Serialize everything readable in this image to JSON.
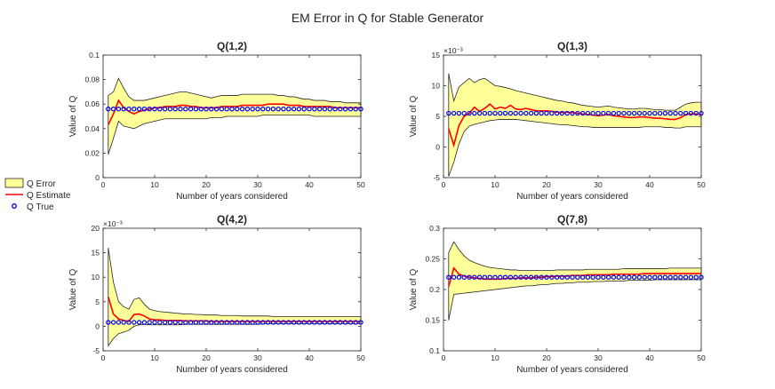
{
  "figure_title": "EM Error in Q for Stable Generator",
  "legend": {
    "error_label": "Q Error",
    "estimate_label": "Q Estimate",
    "true_label": "Q True"
  },
  "colors": {
    "band_fill": "#ffff99",
    "band_edge": "#262626",
    "estimate": "#ff0000",
    "true_marker": "#0000ff"
  },
  "chart_data": [
    {
      "id": "q12",
      "type": "line",
      "title": "Q(1,2)",
      "xlabel": "Number of years considered",
      "ylabel": "Value of Q",
      "exponent_label": "",
      "xlim": [
        0,
        50
      ],
      "ylim": [
        0,
        0.1
      ],
      "xticks": [
        0,
        10,
        20,
        30,
        40,
        50
      ],
      "xtick_labels": [
        "0",
        "10",
        "20",
        "30",
        "40",
        "50"
      ],
      "yticks": [
        0,
        0.02,
        0.04,
        0.06,
        0.08,
        0.1
      ],
      "ytick_labels": [
        "0",
        "0.02",
        "0.04",
        "0.06",
        "0.08",
        "0.1"
      ],
      "x": [
        1,
        2,
        3,
        4,
        5,
        6,
        7,
        8,
        9,
        10,
        11,
        12,
        13,
        14,
        15,
        16,
        17,
        18,
        19,
        20,
        21,
        22,
        23,
        24,
        25,
        26,
        27,
        28,
        29,
        30,
        31,
        32,
        33,
        34,
        35,
        36,
        37,
        38,
        39,
        40,
        41,
        42,
        43,
        44,
        45,
        46,
        47,
        48,
        49,
        50
      ],
      "true_value": 0.056,
      "estimate": [
        0.043,
        0.052,
        0.063,
        0.057,
        0.054,
        0.052,
        0.054,
        0.055,
        0.056,
        0.057,
        0.057,
        0.058,
        0.058,
        0.058,
        0.059,
        0.059,
        0.058,
        0.058,
        0.057,
        0.057,
        0.057,
        0.057,
        0.058,
        0.058,
        0.058,
        0.058,
        0.059,
        0.059,
        0.059,
        0.059,
        0.059,
        0.06,
        0.06,
        0.06,
        0.06,
        0.059,
        0.059,
        0.059,
        0.058,
        0.058,
        0.058,
        0.058,
        0.058,
        0.058,
        0.057,
        0.057,
        0.057,
        0.057,
        0.057,
        0.057
      ],
      "upper": [
        0.067,
        0.07,
        0.081,
        0.073,
        0.066,
        0.063,
        0.063,
        0.063,
        0.064,
        0.065,
        0.066,
        0.067,
        0.068,
        0.069,
        0.07,
        0.07,
        0.069,
        0.068,
        0.067,
        0.066,
        0.065,
        0.066,
        0.067,
        0.067,
        0.067,
        0.067,
        0.068,
        0.068,
        0.068,
        0.068,
        0.068,
        0.068,
        0.068,
        0.067,
        0.067,
        0.066,
        0.066,
        0.065,
        0.064,
        0.064,
        0.063,
        0.063,
        0.063,
        0.062,
        0.062,
        0.062,
        0.061,
        0.061,
        0.061,
        0.061
      ],
      "lower": [
        0.019,
        0.032,
        0.046,
        0.042,
        0.041,
        0.04,
        0.042,
        0.044,
        0.045,
        0.046,
        0.047,
        0.048,
        0.048,
        0.048,
        0.048,
        0.048,
        0.048,
        0.048,
        0.048,
        0.048,
        0.049,
        0.049,
        0.049,
        0.05,
        0.05,
        0.05,
        0.05,
        0.05,
        0.05,
        0.05,
        0.051,
        0.051,
        0.051,
        0.051,
        0.051,
        0.051,
        0.051,
        0.051,
        0.051,
        0.051,
        0.05,
        0.05,
        0.05,
        0.05,
        0.05,
        0.05,
        0.05,
        0.05,
        0.05,
        0.05
      ]
    },
    {
      "id": "q13",
      "type": "line",
      "title": "Q(1,3)",
      "xlabel": "Number of years considered",
      "ylabel": "Value of Q",
      "exponent_label": "×10⁻³",
      "xlim": [
        0,
        50
      ],
      "ylim": [
        -5,
        15
      ],
      "xticks": [
        0,
        10,
        20,
        30,
        40,
        50
      ],
      "xtick_labels": [
        "0",
        "10",
        "20",
        "30",
        "40",
        "50"
      ],
      "yticks": [
        -5,
        0,
        5,
        10,
        15
      ],
      "ytick_labels": [
        "-5",
        "0",
        "5",
        "10",
        "15"
      ],
      "x": [
        1,
        2,
        3,
        4,
        5,
        6,
        7,
        8,
        9,
        10,
        11,
        12,
        13,
        14,
        15,
        16,
        17,
        18,
        19,
        20,
        21,
        22,
        23,
        24,
        25,
        26,
        27,
        28,
        29,
        30,
        31,
        32,
        33,
        34,
        35,
        36,
        37,
        38,
        39,
        40,
        41,
        42,
        43,
        44,
        45,
        46,
        47,
        48,
        49,
        50
      ],
      "true_value": 5.5,
      "estimate": [
        3,
        0.3,
        3.5,
        5,
        5.5,
        6.5,
        5.8,
        6.3,
        7,
        6.2,
        6.5,
        6.3,
        6.8,
        6.2,
        6.1,
        6.3,
        6.1,
        5.9,
        5.9,
        5.9,
        5.8,
        5.7,
        5.6,
        5.7,
        5.6,
        5.5,
        5.4,
        5.3,
        5.2,
        5.1,
        5.2,
        5.3,
        5.1,
        5,
        4.9,
        4.8,
        4.8,
        4.9,
        4.9,
        4.8,
        4.7,
        4.7,
        4.6,
        4.5,
        4.5,
        4.8,
        5.3,
        5.4,
        5.4,
        5.3
      ],
      "upper": [
        12,
        7.5,
        9.8,
        10.5,
        11.2,
        10.5,
        11,
        11.2,
        10.6,
        10,
        9.9,
        9.7,
        9.5,
        9.2,
        9,
        8.8,
        8.6,
        8.4,
        8.2,
        8,
        7.8,
        7.6,
        7.5,
        7.3,
        7.2,
        7,
        6.8,
        6.7,
        6.6,
        6.5,
        6.6,
        6.7,
        6.5,
        6.4,
        6.3,
        6.2,
        6.2,
        6.3,
        6.3,
        6.2,
        6.1,
        6.1,
        6,
        6,
        6,
        6.5,
        7,
        7.2,
        7.3,
        7.3
      ],
      "lower": [
        -4.8,
        -2.5,
        0.5,
        2.5,
        3.4,
        3.7,
        3.9,
        4.1,
        4.3,
        4.4,
        4.5,
        4.5,
        4.5,
        4.5,
        4.4,
        4.3,
        4.2,
        4.1,
        4,
        3.9,
        3.8,
        3.7,
        3.6,
        3.6,
        3.5,
        3.4,
        3.3,
        3.3,
        3.2,
        3.2,
        3.2,
        3.2,
        3.2,
        3.2,
        3.2,
        3.2,
        3.2,
        3.2,
        3.3,
        3.3,
        3.3,
        3.3,
        3.2,
        3.2,
        3.1,
        3.1,
        3.3,
        3.3,
        3.3,
        3.3
      ]
    },
    {
      "id": "q42",
      "type": "line",
      "title": "Q(4,2)",
      "xlabel": "Number of years considered",
      "ylabel": "Value of Q",
      "exponent_label": "×10⁻³",
      "xlim": [
        0,
        50
      ],
      "ylim": [
        -5,
        20
      ],
      "xticks": [
        0,
        10,
        20,
        30,
        40,
        50
      ],
      "xtick_labels": [
        "0",
        "10",
        "20",
        "30",
        "40",
        "50"
      ],
      "yticks": [
        -5,
        0,
        5,
        10,
        15,
        20
      ],
      "ytick_labels": [
        "-5",
        "0",
        "5",
        "10",
        "15",
        "20"
      ],
      "x": [
        1,
        2,
        3,
        4,
        5,
        6,
        7,
        8,
        9,
        10,
        11,
        12,
        13,
        14,
        15,
        16,
        17,
        18,
        19,
        20,
        21,
        22,
        23,
        24,
        25,
        26,
        27,
        28,
        29,
        30,
        31,
        32,
        33,
        34,
        35,
        36,
        37,
        38,
        39,
        40,
        41,
        42,
        43,
        44,
        45,
        46,
        47,
        48,
        49,
        50
      ],
      "true_value": 0.8,
      "estimate": [
        6,
        2.5,
        1.5,
        1.2,
        1,
        2.4,
        2.5,
        2.1,
        1.5,
        1.3,
        1.3,
        1.2,
        1.2,
        1.2,
        1.2,
        1.1,
        1.1,
        1.1,
        1.1,
        1.1,
        1,
        1,
        1,
        1,
        1,
        1,
        1,
        1,
        1,
        1,
        1,
        1,
        1,
        1,
        1,
        1,
        1,
        1,
        1,
        1,
        1,
        1,
        1,
        1,
        1,
        1,
        1,
        1,
        1,
        1
      ],
      "upper": [
        16,
        9,
        5,
        4,
        3.5,
        5.5,
        5.8,
        4.5,
        3.5,
        3.2,
        3,
        2.9,
        2.8,
        2.7,
        2.6,
        2.5,
        2.5,
        2.4,
        2.4,
        2.3,
        2.3,
        2.3,
        2.2,
        2.2,
        2.2,
        2.2,
        2.1,
        2.1,
        2.1,
        2.1,
        2.1,
        2.1,
        2,
        2,
        2,
        2,
        2,
        2,
        2,
        2,
        2,
        2,
        2,
        2,
        2,
        2,
        2,
        2,
        2,
        2
      ],
      "lower": [
        -4,
        -2.5,
        -1.5,
        -1.2,
        -0.8,
        0,
        0.3,
        0.4,
        0.3,
        0.3,
        0.3,
        0.3,
        0.3,
        0.3,
        0.3,
        0.4,
        0.4,
        0.4,
        0.4,
        0.4,
        0.4,
        0.4,
        0.4,
        0.4,
        0.4,
        0.4,
        0.4,
        0.4,
        0.4,
        0.4,
        0.5,
        0.5,
        0.5,
        0.5,
        0.5,
        0.5,
        0.5,
        0.5,
        0.5,
        0.5,
        0.5,
        0.5,
        0.5,
        0.5,
        0.5,
        0.5,
        0.5,
        0.5,
        0.5,
        0.5
      ]
    },
    {
      "id": "q78",
      "type": "line",
      "title": "Q(7,8)",
      "xlabel": "Number of years considered",
      "ylabel": "Value of Q",
      "exponent_label": "",
      "xlim": [
        0,
        50
      ],
      "ylim": [
        0.1,
        0.3
      ],
      "xticks": [
        0,
        10,
        20,
        30,
        40,
        50
      ],
      "xtick_labels": [
        "0",
        "10",
        "20",
        "30",
        "40",
        "50"
      ],
      "yticks": [
        0.1,
        0.15,
        0.2,
        0.25,
        0.3
      ],
      "ytick_labels": [
        "0.1",
        "0.15",
        "0.2",
        "0.25",
        "0.3"
      ],
      "x": [
        1,
        2,
        3,
        4,
        5,
        6,
        7,
        8,
        9,
        10,
        11,
        12,
        13,
        14,
        15,
        16,
        17,
        18,
        19,
        20,
        21,
        22,
        23,
        24,
        25,
        26,
        27,
        28,
        29,
        30,
        31,
        32,
        33,
        34,
        35,
        36,
        37,
        38,
        39,
        40,
        41,
        42,
        43,
        44,
        45,
        46,
        47,
        48,
        49,
        50
      ],
      "true_value": 0.22,
      "estimate": [
        0.205,
        0.235,
        0.225,
        0.222,
        0.22,
        0.219,
        0.218,
        0.217,
        0.217,
        0.217,
        0.217,
        0.218,
        0.218,
        0.218,
        0.219,
        0.219,
        0.219,
        0.22,
        0.22,
        0.221,
        0.221,
        0.222,
        0.222,
        0.222,
        0.223,
        0.223,
        0.223,
        0.224,
        0.224,
        0.224,
        0.224,
        0.224,
        0.225,
        0.225,
        0.225,
        0.225,
        0.225,
        0.225,
        0.226,
        0.226,
        0.226,
        0.226,
        0.226,
        0.226,
        0.226,
        0.226,
        0.226,
        0.226,
        0.226,
        0.226
      ],
      "upper": [
        0.26,
        0.278,
        0.265,
        0.255,
        0.248,
        0.244,
        0.241,
        0.238,
        0.236,
        0.235,
        0.234,
        0.233,
        0.232,
        0.232,
        0.231,
        0.231,
        0.231,
        0.231,
        0.231,
        0.231,
        0.231,
        0.232,
        0.232,
        0.232,
        0.232,
        0.232,
        0.232,
        0.233,
        0.233,
        0.233,
        0.233,
        0.233,
        0.233,
        0.233,
        0.234,
        0.234,
        0.234,
        0.234,
        0.234,
        0.234,
        0.234,
        0.234,
        0.234,
        0.235,
        0.235,
        0.235,
        0.235,
        0.235,
        0.235,
        0.235
      ],
      "lower": [
        0.15,
        0.192,
        0.193,
        0.194,
        0.195,
        0.196,
        0.197,
        0.198,
        0.199,
        0.2,
        0.201,
        0.202,
        0.203,
        0.204,
        0.205,
        0.206,
        0.206,
        0.207,
        0.208,
        0.208,
        0.209,
        0.21,
        0.21,
        0.211,
        0.211,
        0.212,
        0.212,
        0.212,
        0.213,
        0.213,
        0.213,
        0.214,
        0.214,
        0.214,
        0.214,
        0.215,
        0.215,
        0.215,
        0.215,
        0.215,
        0.216,
        0.216,
        0.216,
        0.216,
        0.216,
        0.216,
        0.216,
        0.216,
        0.216,
        0.216
      ]
    }
  ]
}
